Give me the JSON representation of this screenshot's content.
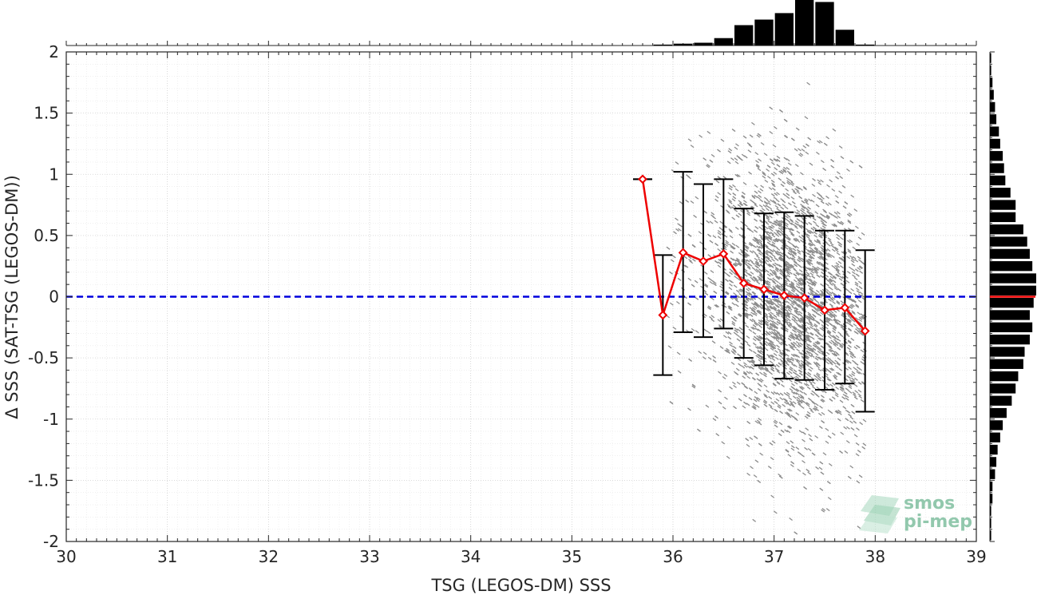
{
  "chart_data": {
    "type": "scatter",
    "title": "",
    "xlabel": "TSG (LEGOS-DM) SSS",
    "ylabel": "Δ SSS (SAT-TSG (LEGOS-DM))",
    "xlim": [
      30,
      39
    ],
    "ylim": [
      -2,
      2
    ],
    "x_ticks": [
      "30",
      "31",
      "32",
      "33",
      "34",
      "35",
      "36",
      "37",
      "38",
      "39"
    ],
    "y_ticks": [
      "-2",
      "-1.5",
      "-1",
      "-0.5",
      "0",
      "0.5",
      "1",
      "1.5",
      "2"
    ],
    "grid": true,
    "minor_grid": true,
    "reference_line": {
      "y": 0,
      "style": "dashed",
      "color": "#0000dd"
    },
    "binned_mean": {
      "color": "#ee0000",
      "x": [
        35.7,
        35.9,
        36.1,
        36.3,
        36.5,
        36.7,
        36.9,
        37.1,
        37.3,
        37.5,
        37.7,
        37.9
      ],
      "mean": [
        0.96,
        -0.15,
        0.36,
        0.29,
        0.35,
        0.11,
        0.06,
        0.01,
        -0.01,
        -0.11,
        -0.09,
        -0.28
      ],
      "lower": [
        0.96,
        -0.64,
        -0.29,
        -0.33,
        -0.26,
        -0.5,
        -0.56,
        -0.67,
        -0.68,
        -0.76,
        -0.71,
        -0.94
      ],
      "upper": [
        0.96,
        0.34,
        1.02,
        0.92,
        0.96,
        0.72,
        0.68,
        0.69,
        0.66,
        0.54,
        0.54,
        0.38
      ]
    },
    "scatter_cloud": {
      "color": "#8c8c8c",
      "x_range": [
        35.95,
        37.9
      ],
      "y_center_at_x": [
        [
          36.0,
          0.35
        ],
        [
          36.5,
          0.2
        ],
        [
          37.0,
          0.0
        ],
        [
          37.5,
          -0.15
        ],
        [
          37.9,
          -0.3
        ]
      ],
      "y_spread": 0.75
    },
    "top_histogram": {
      "bin_centers": [
        35.9,
        36.1,
        36.3,
        36.5,
        36.7,
        36.9,
        37.1,
        37.3,
        37.5,
        37.7,
        37.9
      ],
      "counts": [
        1,
        2,
        3,
        8,
        22,
        28,
        35,
        50,
        47,
        17,
        1
      ]
    },
    "right_histogram": {
      "bin_centers": [
        -1.95,
        -1.85,
        -1.75,
        -1.65,
        -1.55,
        -1.45,
        -1.35,
        -1.25,
        -1.15,
        -1.05,
        -0.95,
        -0.85,
        -0.75,
        -0.65,
        -0.55,
        -0.45,
        -0.35,
        -0.25,
        -0.15,
        -0.05,
        0.05,
        0.15,
        0.25,
        0.35,
        0.45,
        0.55,
        0.65,
        0.75,
        0.85,
        0.95,
        1.05,
        1.15,
        1.25,
        1.35,
        1.45,
        1.55,
        1.65,
        1.75,
        1.85,
        1.95
      ],
      "counts": [
        1,
        1,
        1,
        2,
        2,
        4,
        5,
        6,
        8,
        10,
        13,
        17,
        20,
        22,
        26,
        27,
        31,
        33,
        31,
        34,
        36,
        36,
        33,
        31,
        29,
        26,
        20,
        20,
        16,
        12,
        11,
        10,
        8,
        7,
        5,
        4,
        3,
        2,
        1,
        1
      ],
      "mean_line_y": 0.0,
      "mean_line_color": "#ee0000"
    },
    "watermark": {
      "line1": "smos",
      "line2": "pi-mep"
    }
  }
}
